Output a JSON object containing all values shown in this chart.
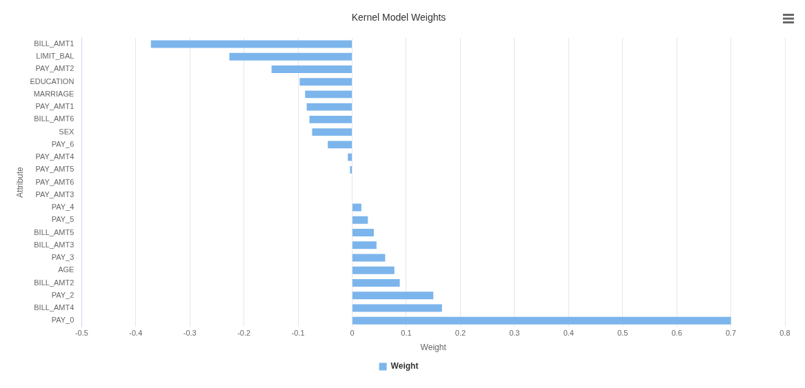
{
  "chart_data": {
    "type": "bar",
    "orientation": "horizontal",
    "title": "Kernel Model Weights",
    "xlabel": "Weight",
    "ylabel": "Attribute",
    "categories": [
      "BILL_AMT1",
      "LIMIT_BAL",
      "PAY_AMT2",
      "EDUCATION",
      "MARRIAGE",
      "PAY_AMT1",
      "BILL_AMT6",
      "SEX",
      "PAY_6",
      "PAY_AMT4",
      "PAY_AMT5",
      "PAY_AMT6",
      "PAY_AMT3",
      "PAY_4",
      "PAY_5",
      "BILL_AMT5",
      "BILL_AMT3",
      "PAY_3",
      "AGE",
      "BILL_AMT2",
      "PAY_2",
      "BILL_AMT4",
      "PAY_0"
    ],
    "series": [
      {
        "name": "Weight",
        "color": "#7cb5ec",
        "values": [
          -0.372,
          -0.227,
          -0.149,
          -0.097,
          -0.087,
          -0.084,
          -0.079,
          -0.074,
          -0.045,
          -0.008,
          -0.004,
          0,
          0,
          0.017,
          0.029,
          0.04,
          0.045,
          0.061,
          0.078,
          0.088,
          0.15,
          0.166,
          0.7
        ]
      }
    ],
    "xlim": [
      -0.5,
      0.8
    ],
    "xticks": [
      -0.5,
      -0.4,
      -0.3,
      -0.2,
      -0.1,
      0,
      0.1,
      0.2,
      0.3,
      0.4,
      0.5,
      0.6,
      0.7,
      0.8
    ],
    "grid": "x",
    "legend": "bottom"
  }
}
